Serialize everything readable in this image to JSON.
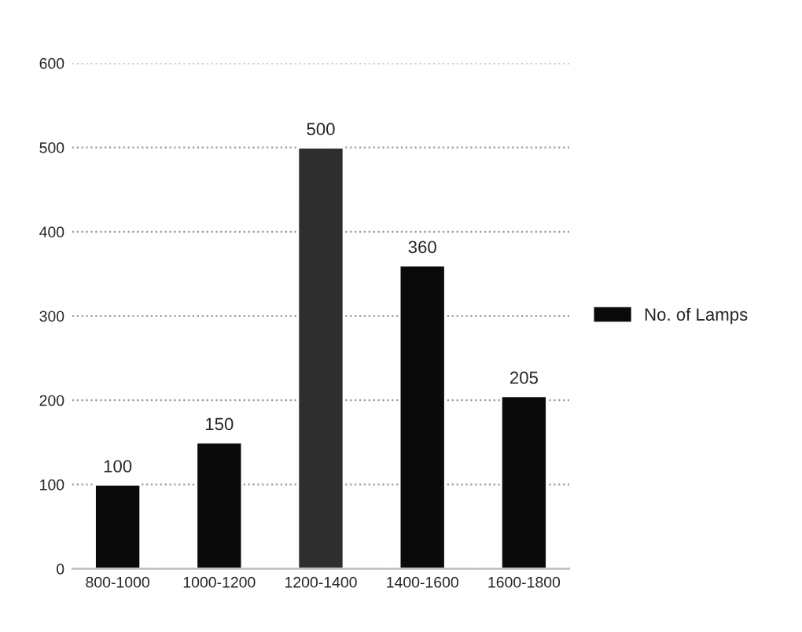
{
  "chart_data": {
    "type": "bar",
    "categories": [
      "800-1000",
      "1000-1200",
      "1200-1400",
      "1400-1600",
      "1600-1800"
    ],
    "series": [
      {
        "name": "No. of Lamps",
        "values": [
          100,
          150,
          500,
          360,
          205
        ],
        "colors": [
          "#0a0a0a",
          "#0a0a0a",
          "#2e2e2e",
          "#0a0a0a",
          "#0a0a0a"
        ],
        "color": "#0a0a0a"
      }
    ],
    "ylim": [
      0,
      600
    ],
    "yticks": [
      0,
      100,
      200,
      300,
      400,
      500,
      600
    ],
    "grid": "y",
    "legend": "right",
    "data_labels": true
  }
}
